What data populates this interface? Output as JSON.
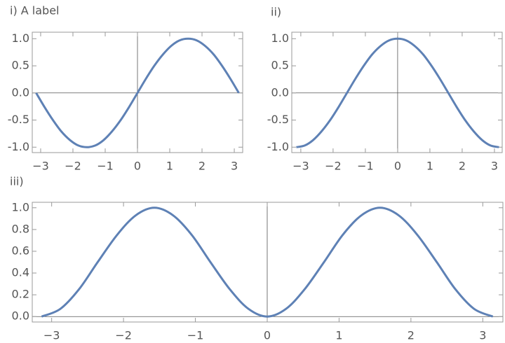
{
  "chart_data": [
    {
      "type": "line",
      "title": "i) A label",
      "x": [
        -3.14,
        -2.88,
        -2.62,
        -2.36,
        -2.09,
        -1.83,
        -1.57,
        -1.31,
        -1.05,
        -0.79,
        -0.52,
        -0.26,
        0,
        0.26,
        0.52,
        0.79,
        1.05,
        1.31,
        1.57,
        1.83,
        2.09,
        2.36,
        2.62,
        2.88,
        3.14
      ],
      "values": [
        0,
        -0.26,
        -0.5,
        -0.71,
        -0.87,
        -0.97,
        -1,
        -0.97,
        -0.87,
        -0.71,
        -0.5,
        -0.26,
        0,
        0.26,
        0.5,
        0.71,
        0.87,
        0.97,
        1,
        0.97,
        0.87,
        0.71,
        0.5,
        0.26,
        0
      ],
      "color": "#5e81b5",
      "axes": true,
      "xlim": [
        -3.26,
        3.26
      ],
      "ylim": [
        -1.1,
        1.12
      ],
      "xticks": [
        {
          "value": -3,
          "label": "−3"
        },
        {
          "value": -2,
          "label": "−2"
        },
        {
          "value": -1,
          "label": "−1"
        },
        0,
        1,
        2,
        3
      ],
      "yticks": [
        {
          "value": -1,
          "label": "-1.0"
        },
        {
          "value": -0.5,
          "label": "-0.5"
        },
        {
          "value": 0,
          "label": "0.0"
        },
        0.5,
        {
          "value": 1,
          "label": "1.0"
        }
      ]
    },
    {
      "type": "line",
      "title": "ii)",
      "x": [
        -3.14,
        -2.88,
        -2.62,
        -2.36,
        -2.09,
        -1.83,
        -1.57,
        -1.31,
        -1.05,
        -0.79,
        -0.52,
        -0.26,
        0,
        0.26,
        0.52,
        0.79,
        1.05,
        1.31,
        1.57,
        1.83,
        2.09,
        2.36,
        2.62,
        2.88,
        3.14
      ],
      "values": [
        -1,
        -0.97,
        -0.87,
        -0.71,
        -0.5,
        -0.26,
        0,
        0.26,
        0.5,
        0.71,
        0.87,
        0.97,
        1,
        0.97,
        0.87,
        0.71,
        0.5,
        0.26,
        0,
        -0.26,
        -0.5,
        -0.71,
        -0.87,
        -0.97,
        -1
      ],
      "color": "#5e81b5",
      "axes": true,
      "xlim": [
        -3.28,
        3.24
      ],
      "ylim": [
        -1.1,
        1.12
      ],
      "xticks": [
        {
          "value": -3,
          "label": "−3"
        },
        {
          "value": -2,
          "label": "−2"
        },
        {
          "value": -1,
          "label": "−1"
        },
        0,
        1,
        2,
        3
      ],
      "yticks": [
        {
          "value": -1,
          "label": "-1.0"
        },
        {
          "value": -0.5,
          "label": "-0.5"
        },
        {
          "value": 0,
          "label": "0.0"
        },
        0.5,
        {
          "value": 1,
          "label": "1.0"
        }
      ]
    },
    {
      "type": "line",
      "title": "iii)",
      "x": [
        -3.14,
        -2.88,
        -2.62,
        -2.36,
        -2.09,
        -1.83,
        -1.57,
        -1.31,
        -1.05,
        -0.79,
        -0.52,
        -0.26,
        0,
        0.26,
        0.52,
        0.79,
        1.05,
        1.31,
        1.57,
        1.83,
        2.09,
        2.36,
        2.62,
        2.88,
        3.14
      ],
      "values": [
        0,
        0.07,
        0.25,
        0.5,
        0.75,
        0.93,
        1,
        0.93,
        0.75,
        0.5,
        0.25,
        0.07,
        0,
        0.07,
        0.25,
        0.5,
        0.75,
        0.93,
        1,
        0.93,
        0.75,
        0.5,
        0.25,
        0.07,
        0
      ],
      "color": "#5e81b5",
      "axes": true,
      "xlim": [
        -3.27,
        3.28
      ],
      "ylim": [
        -0.05,
        1.05
      ],
      "xticks": [
        {
          "value": -3,
          "label": "−3"
        },
        {
          "value": -2,
          "label": "−2"
        },
        {
          "value": -1,
          "label": "−1"
        },
        0,
        1,
        2,
        3
      ],
      "yticks": [
        {
          "value": 0,
          "label": "0.0"
        },
        0.2,
        0.4,
        0.6,
        0.8,
        {
          "value": 1,
          "label": "1.0"
        }
      ]
    }
  ]
}
